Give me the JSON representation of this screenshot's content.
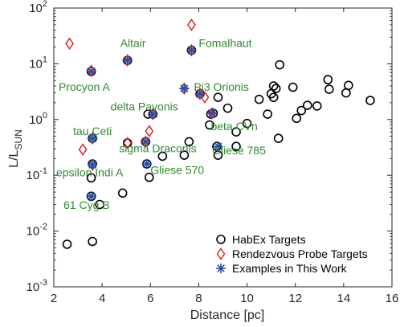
{
  "chart_data": {
    "type": "scatter",
    "xlabel": "Distance [pc]",
    "ylabel_main": "L/L",
    "ylabel_sub": "SUN",
    "xlim": [
      2,
      16
    ],
    "ylim": [
      0.001,
      100
    ],
    "yscale": "log",
    "x_ticks": [
      2,
      4,
      6,
      8,
      10,
      12,
      14,
      16
    ],
    "x_tick_labels": [
      "2",
      "4",
      "6",
      "8",
      "10",
      "12",
      "14",
      "16"
    ],
    "y_ticks": [
      0.001,
      0.01,
      0.1,
      1,
      10,
      100
    ],
    "y_tick_labels": [
      {
        "base": "10",
        "exp": "-3"
      },
      {
        "base": "10",
        "exp": "-2"
      },
      {
        "base": "10",
        "exp": "-1"
      },
      {
        "base": "10",
        "exp": "0"
      },
      {
        "base": "10",
        "exp": "1"
      },
      {
        "base": "10",
        "exp": "2"
      }
    ],
    "legend_position": "bottom-right",
    "series": [
      {
        "name": "HabEx Targets",
        "marker": "circle",
        "color": "#000000",
        "points": [
          {
            "x": 2.55,
            "y": 0.0058
          },
          {
            "x": 3.6,
            "y": 0.0065
          },
          {
            "x": 3.9,
            "y": 0.03
          },
          {
            "x": 3.55,
            "y": 0.09
          },
          {
            "x": 4.85,
            "y": 0.048
          },
          {
            "x": 3.55,
            "y": 7.3
          },
          {
            "x": 3.6,
            "y": 0.46
          },
          {
            "x": 3.6,
            "y": 0.16
          },
          {
            "x": 3.55,
            "y": 0.042
          },
          {
            "x": 5.05,
            "y": 11.5
          },
          {
            "x": 5.05,
            "y": 0.38
          },
          {
            "x": 5.8,
            "y": 0.4
          },
          {
            "x": 5.85,
            "y": 0.16
          },
          {
            "x": 5.95,
            "y": 0.092
          },
          {
            "x": 5.9,
            "y": 1.25
          },
          {
            "x": 6.1,
            "y": 1.25
          },
          {
            "x": 6.5,
            "y": 0.22
          },
          {
            "x": 7.4,
            "y": 0.23
          },
          {
            "x": 7.6,
            "y": 0.4
          },
          {
            "x": 7.7,
            "y": 17.5
          },
          {
            "x": 8.05,
            "y": 2.9
          },
          {
            "x": 8.45,
            "y": 0.8
          },
          {
            "x": 8.5,
            "y": 1.25
          },
          {
            "x": 8.6,
            "y": 1.3
          },
          {
            "x": 8.8,
            "y": 2.5
          },
          {
            "x": 8.75,
            "y": 0.33
          },
          {
            "x": 8.8,
            "y": 0.23
          },
          {
            "x": 9.2,
            "y": 1.6
          },
          {
            "x": 9.55,
            "y": 0.6
          },
          {
            "x": 9.55,
            "y": 0.33
          },
          {
            "x": 10.0,
            "y": 0.85
          },
          {
            "x": 10.5,
            "y": 2.3
          },
          {
            "x": 10.85,
            "y": 1.25
          },
          {
            "x": 11.0,
            "y": 2.9
          },
          {
            "x": 11.1,
            "y": 4.0
          },
          {
            "x": 11.1,
            "y": 2.5
          },
          {
            "x": 11.2,
            "y": 3.6
          },
          {
            "x": 11.3,
            "y": 0.46
          },
          {
            "x": 11.35,
            "y": 9.6
          },
          {
            "x": 11.9,
            "y": 3.8
          },
          {
            "x": 12.05,
            "y": 1.05
          },
          {
            "x": 12.25,
            "y": 1.45
          },
          {
            "x": 12.5,
            "y": 1.8
          },
          {
            "x": 12.9,
            "y": 1.75
          },
          {
            "x": 13.35,
            "y": 5.2
          },
          {
            "x": 13.4,
            "y": 3.5
          },
          {
            "x": 14.1,
            "y": 3.0
          },
          {
            "x": 14.2,
            "y": 4.1
          },
          {
            "x": 15.1,
            "y": 2.2
          }
        ]
      },
      {
        "name": "Rendezvous Probe Targets",
        "marker": "diamond",
        "color": "#d62728",
        "points": [
          {
            "x": 2.65,
            "y": 23
          },
          {
            "x": 3.2,
            "y": 0.29
          },
          {
            "x": 3.55,
            "y": 7.5
          },
          {
            "x": 3.6,
            "y": 0.46
          },
          {
            "x": 3.6,
            "y": 0.155
          },
          {
            "x": 5.05,
            "y": 11.5
          },
          {
            "x": 5.05,
            "y": 0.38
          },
          {
            "x": 5.8,
            "y": 0.4
          },
          {
            "x": 5.95,
            "y": 0.62
          },
          {
            "x": 6.1,
            "y": 1.25
          },
          {
            "x": 7.4,
            "y": 3.6
          },
          {
            "x": 7.7,
            "y": 17.5
          },
          {
            "x": 7.7,
            "y": 50
          },
          {
            "x": 8.05,
            "y": 2.9
          },
          {
            "x": 8.25,
            "y": 2.5
          },
          {
            "x": 8.55,
            "y": 1.3
          }
        ]
      },
      {
        "name": "Examples in This Work",
        "marker": "asterisk",
        "color": "#1f4fa8",
        "points": [
          {
            "x": 3.55,
            "y": 7.3
          },
          {
            "x": 3.6,
            "y": 0.46
          },
          {
            "x": 3.6,
            "y": 0.155
          },
          {
            "x": 3.55,
            "y": 0.042
          },
          {
            "x": 5.05,
            "y": 11.5
          },
          {
            "x": 5.8,
            "y": 0.4
          },
          {
            "x": 5.85,
            "y": 0.16
          },
          {
            "x": 6.1,
            "y": 1.25
          },
          {
            "x": 7.4,
            "y": 3.6
          },
          {
            "x": 7.7,
            "y": 17.5
          },
          {
            "x": 8.05,
            "y": 2.9
          },
          {
            "x": 8.55,
            "y": 1.3
          },
          {
            "x": 8.8,
            "y": 0.33
          }
        ]
      }
    ],
    "annotations": [
      {
        "text": "Altair",
        "x": 4.75,
        "y": 20
      },
      {
        "text": "Fomalhaut",
        "x": 8.0,
        "y": 20
      },
      {
        "text": "Procyon A",
        "x": 2.2,
        "y": 3.3
      },
      {
        "text": "Pi3 Orionis",
        "x": 7.8,
        "y": 3.3
      },
      {
        "text": "delta Pavonis",
        "x": 4.35,
        "y": 1.45
      },
      {
        "text": "tau Ceti",
        "x": 2.8,
        "y": 0.53
      },
      {
        "text": "beta CVn",
        "x": 8.5,
        "y": 0.65
      },
      {
        "text": "sigma Draconis",
        "x": 4.7,
        "y": 0.26
      },
      {
        "text": "Gliese 785",
        "x": 8.55,
        "y": 0.24
      },
      {
        "text": "epsilon Indi A",
        "x": 2.1,
        "y": 0.095
      },
      {
        "text": "Gliese 570",
        "x": 6.0,
        "y": 0.105
      },
      {
        "text": "61 Cyg B",
        "x": 2.4,
        "y": 0.025
      }
    ]
  }
}
